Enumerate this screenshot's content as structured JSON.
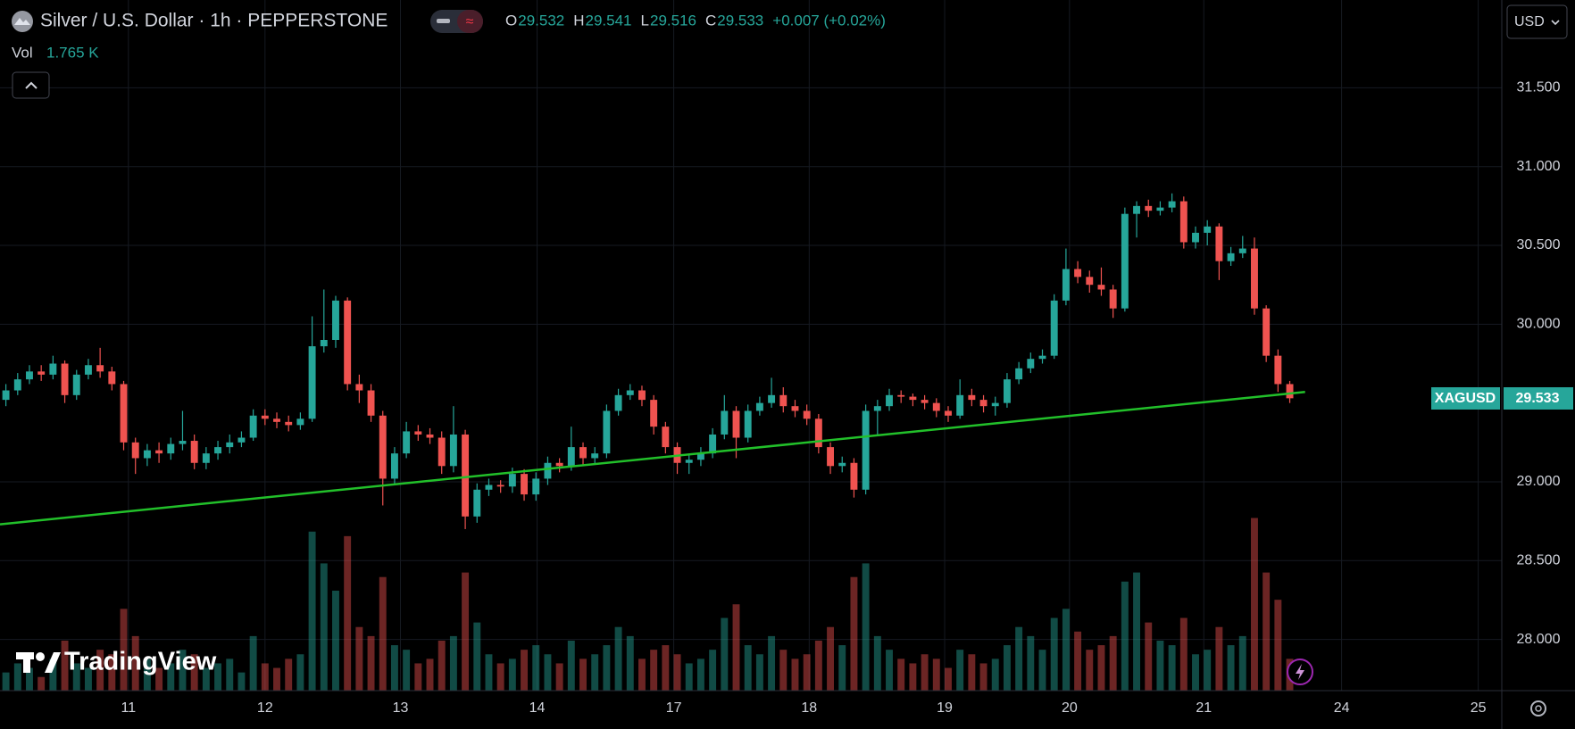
{
  "chart_data": {
    "type": "candlestick",
    "title": "Silver / U.S. Dollar · 1h · PEPPERSTONE",
    "ohlc_header": [
      {
        "label": "O",
        "value": 29.532
      },
      {
        "label": "H",
        "value": 29.541
      },
      {
        "label": "L",
        "value": 29.516
      },
      {
        "label": "C",
        "value": 29.533
      }
    ],
    "change": "+0.007 (+0.02%)",
    "volume_label": "Vol",
    "volume_value": "1.765 K",
    "currency": "USD",
    "symbol": "XAGUSD",
    "last_price": 29.533,
    "watermark": "TradingView",
    "up_color": "#26a69a",
    "down_color": "#ef5350",
    "open": [
      29.52,
      29.58,
      29.65,
      29.7,
      29.68,
      29.75,
      29.55,
      29.68,
      29.74,
      29.7,
      29.62,
      29.25,
      29.15,
      29.2,
      29.18,
      29.24,
      29.26,
      29.12,
      29.18,
      29.22,
      29.25,
      29.28,
      29.42,
      29.4,
      29.38,
      29.36,
      29.4,
      29.86,
      29.9,
      30.15,
      29.62,
      29.58,
      29.42,
      29.02,
      29.18,
      29.32,
      29.3,
      29.28,
      29.1,
      29.3,
      28.78,
      28.95,
      28.98,
      28.97,
      29.05,
      28.92,
      29.02,
      29.12,
      29.1,
      29.22,
      29.15,
      29.18,
      29.45,
      29.55,
      29.58,
      29.52,
      29.35,
      29.22,
      29.12,
      29.14,
      29.18,
      29.3,
      29.45,
      29.28,
      29.45,
      29.5,
      29.55,
      29.48,
      29.45,
      29.4,
      29.22,
      29.1,
      29.12,
      28.95,
      29.45,
      29.48,
      29.55,
      29.54,
      29.52,
      29.5,
      29.45,
      29.42,
      29.55,
      29.52,
      29.48,
      29.5,
      29.65,
      29.72,
      29.78,
      29.8,
      30.15,
      30.35,
      30.3,
      30.25,
      30.22,
      30.1,
      30.7,
      30.75,
      30.72,
      30.74,
      30.78,
      30.52,
      30.58,
      30.62,
      30.4,
      30.45,
      30.48,
      30.1,
      29.8,
      29.62
    ],
    "high": [
      29.62,
      29.69,
      29.74,
      29.74,
      29.8,
      29.77,
      29.71,
      29.78,
      29.85,
      29.73,
      29.64,
      29.28,
      29.24,
      29.25,
      29.28,
      29.45,
      29.3,
      29.22,
      29.26,
      29.3,
      29.32,
      29.46,
      29.46,
      29.44,
      29.42,
      29.44,
      30.05,
      30.22,
      30.18,
      30.17,
      29.68,
      29.62,
      29.45,
      29.22,
      29.38,
      29.36,
      29.34,
      29.32,
      29.48,
      29.33,
      28.99,
      29.02,
      29.01,
      29.09,
      29.08,
      29.06,
      29.16,
      29.15,
      29.35,
      29.25,
      29.22,
      29.49,
      29.59,
      29.62,
      29.61,
      29.55,
      29.38,
      29.25,
      29.18,
      29.22,
      29.34,
      29.55,
      29.48,
      29.49,
      29.54,
      29.66,
      29.6,
      29.52,
      29.49,
      29.43,
      29.25,
      29.16,
      29.15,
      29.49,
      29.52,
      29.59,
      29.58,
      29.56,
      29.55,
      29.53,
      29.48,
      29.65,
      29.59,
      29.55,
      29.54,
      29.69,
      29.76,
      29.82,
      29.84,
      30.19,
      30.48,
      30.4,
      30.34,
      30.36,
      30.25,
      30.74,
      30.78,
      30.79,
      30.78,
      30.83,
      30.81,
      30.62,
      30.66,
      30.64,
      30.49,
      30.56,
      30.55,
      30.12,
      29.84,
      29.64
    ],
    "low": [
      29.48,
      29.55,
      29.62,
      29.64,
      29.65,
      29.5,
      29.52,
      29.65,
      29.66,
      29.58,
      29.2,
      29.05,
      29.1,
      29.12,
      29.14,
      29.2,
      29.08,
      29.08,
      29.14,
      29.18,
      29.22,
      29.26,
      29.36,
      29.34,
      29.32,
      29.33,
      29.38,
      29.82,
      29.85,
      29.58,
      29.5,
      29.38,
      28.85,
      28.98,
      29.15,
      29.26,
      29.24,
      29.05,
      29.06,
      28.7,
      28.74,
      28.91,
      28.93,
      28.93,
      28.88,
      28.88,
      28.98,
      29.06,
      29.07,
      29.1,
      29.11,
      29.15,
      29.42,
      29.52,
      29.48,
      29.3,
      29.18,
      29.05,
      29.05,
      29.1,
      29.15,
      29.27,
      29.15,
      29.25,
      29.42,
      29.47,
      29.44,
      29.41,
      29.36,
      29.18,
      29.05,
      29.06,
      28.9,
      28.92,
      29.3,
      29.45,
      29.5,
      29.48,
      29.46,
      29.41,
      29.38,
      29.4,
      29.48,
      29.44,
      29.42,
      29.47,
      29.62,
      29.69,
      29.75,
      29.78,
      30.12,
      30.26,
      30.2,
      30.18,
      30.04,
      30.08,
      30.55,
      30.68,
      30.69,
      30.71,
      30.48,
      30.48,
      30.5,
      30.28,
      30.37,
      30.42,
      30.06,
      29.76,
      29.57,
      29.5
    ],
    "close": [
      29.58,
      29.65,
      29.7,
      29.68,
      29.75,
      29.55,
      29.68,
      29.74,
      29.7,
      29.62,
      29.25,
      29.15,
      29.2,
      29.18,
      29.24,
      29.26,
      29.12,
      29.18,
      29.22,
      29.25,
      29.28,
      29.42,
      29.4,
      29.38,
      29.36,
      29.4,
      29.86,
      29.9,
      30.15,
      29.62,
      29.58,
      29.42,
      29.02,
      29.18,
      29.32,
      29.3,
      29.28,
      29.1,
      29.3,
      28.78,
      28.95,
      28.98,
      28.97,
      29.05,
      28.92,
      29.02,
      29.12,
      29.1,
      29.22,
      29.15,
      29.18,
      29.45,
      29.55,
      29.58,
      29.52,
      29.35,
      29.22,
      29.12,
      29.14,
      29.18,
      29.3,
      29.45,
      29.28,
      29.45,
      29.5,
      29.55,
      29.48,
      29.45,
      29.4,
      29.22,
      29.1,
      29.12,
      28.95,
      29.45,
      29.48,
      29.55,
      29.54,
      29.52,
      29.5,
      29.45,
      29.42,
      29.55,
      29.52,
      29.48,
      29.5,
      29.65,
      29.72,
      29.78,
      29.8,
      30.15,
      30.35,
      30.3,
      30.25,
      30.22,
      30.1,
      30.7,
      30.75,
      30.72,
      30.74,
      30.78,
      30.52,
      30.58,
      30.62,
      30.4,
      30.45,
      30.48,
      30.1,
      29.8,
      29.62,
      29.53
    ],
    "volume": [
      4,
      6,
      5,
      3,
      7,
      11,
      6,
      5,
      9,
      8,
      18,
      12,
      7,
      5,
      6,
      9,
      8,
      5,
      6,
      7,
      4,
      12,
      6,
      5,
      7,
      8,
      35,
      28,
      22,
      34,
      14,
      12,
      25,
      10,
      9,
      6,
      7,
      11,
      12,
      26,
      15,
      8,
      6,
      7,
      9,
      10,
      8,
      6,
      11,
      7,
      8,
      10,
      14,
      12,
      7,
      9,
      10,
      8,
      6,
      7,
      9,
      16,
      19,
      10,
      8,
      12,
      9,
      7,
      8,
      11,
      14,
      10,
      25,
      28,
      12,
      9,
      7,
      6,
      8,
      7,
      5,
      9,
      8,
      6,
      7,
      10,
      14,
      12,
      9,
      16,
      18,
      13,
      9,
      10,
      12,
      24,
      26,
      15,
      11,
      10,
      16,
      8,
      9,
      14,
      10,
      12,
      38,
      26,
      20,
      7
    ],
    "trendline": {
      "x": [
        -0.5,
        110.3
      ],
      "y": [
        28.73,
        29.57
      ],
      "color": "#22c02a"
    },
    "xlim": [
      -0.5,
      127
    ],
    "xticks": [
      {
        "value": 10.4,
        "label": "11"
      },
      {
        "value": 22.0,
        "label": "12"
      },
      {
        "value": 33.5,
        "label": "13"
      },
      {
        "value": 45.1,
        "label": "14"
      },
      {
        "value": 56.7,
        "label": "17"
      },
      {
        "value": 68.2,
        "label": "18"
      },
      {
        "value": 79.7,
        "label": "19"
      },
      {
        "value": 90.3,
        "label": "20"
      },
      {
        "value": 101.7,
        "label": "21"
      },
      {
        "value": 113.4,
        "label": "24"
      },
      {
        "value": 125.0,
        "label": "25"
      }
    ],
    "ylim": [
      27.675,
      32.057
    ],
    "yticks": [
      {
        "value": 28,
        "label": "28.000"
      },
      {
        "value": 28.5,
        "label": "28.500"
      },
      {
        "value": 29,
        "label": "29.000"
      },
      {
        "value": 30,
        "label": "30.000"
      },
      {
        "value": 30.5,
        "label": "30.500"
      },
      {
        "value": 31,
        "label": "31.000"
      },
      {
        "value": 31.5,
        "label": "31.500"
      }
    ],
    "grid": true
  }
}
